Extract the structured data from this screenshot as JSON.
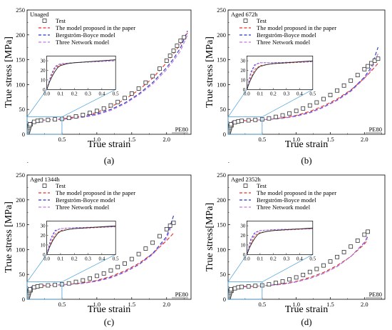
{
  "panels": [
    {
      "caption": "(a)",
      "condition": "Unaged",
      "material": "PE80",
      "xlabel": "True strain",
      "ylabel": "True stress [MPa]",
      "xticks": [
        "0.5",
        "1.0",
        "1.5",
        "2.0"
      ],
      "yticks": [
        "0",
        "50",
        "100",
        "150",
        "200",
        "250"
      ],
      "inset_xticks": [
        "0.0",
        "0.1",
        "0.2",
        "0.3",
        "0.4",
        "0.5"
      ],
      "inset_yticks": [
        "0",
        "10",
        "20",
        "30"
      ],
      "legend": [
        "Test",
        "The model proposed in the paper",
        "Bergström-Boyce model",
        "Three Network model"
      ]
    },
    {
      "caption": "(b)",
      "condition": "Aged 672h",
      "material": "PE80",
      "xlabel": "True strain",
      "ylabel": "True stress [MPa]",
      "xticks": [
        "0.5",
        "1.0",
        "1.5",
        "2.0"
      ],
      "yticks": [
        "0",
        "50",
        "100",
        "150",
        "200",
        "250"
      ],
      "inset_xticks": [
        "0.0",
        "0.1",
        "0.2",
        "0.3",
        "0.4",
        "0.5"
      ],
      "inset_yticks": [
        "0",
        "10",
        "20",
        "30"
      ],
      "legend": [
        "Test",
        "The model proposed in the paper",
        "Bergström-Boyce model",
        "Three Network model"
      ]
    },
    {
      "caption": "(c)",
      "condition": "Aged 1344h",
      "material": "PE80",
      "xlabel": "True strain",
      "ylabel": "True stress [MPa]",
      "xticks": [
        "0.5",
        "1.0",
        "1.5",
        "2.0"
      ],
      "yticks": [
        "0",
        "50",
        "100",
        "150",
        "200",
        "250"
      ],
      "inset_xticks": [
        "0.0",
        "0.1",
        "0.2",
        "0.3",
        "0.4",
        "0.5"
      ],
      "inset_yticks": [
        "0",
        "10",
        "20",
        "30"
      ],
      "legend": [
        "Test",
        "The model proposed in the paper",
        "Bergström-Boyce model",
        "Three Network model"
      ]
    },
    {
      "caption": "(d)",
      "condition": "Aged 2352h",
      "material": "PE80",
      "xlabel": "True strain",
      "ylabel": "True stress[MPa]",
      "xticks": [
        "0.5",
        "1.0",
        "1.5",
        "2.0"
      ],
      "yticks": [
        "0",
        "50",
        "100",
        "150",
        "200",
        "250"
      ],
      "inset_xticks": [
        "0.0",
        "0.1",
        "0.2",
        "0.3",
        "0.4",
        "0.5"
      ],
      "inset_yticks": [
        "0",
        "10",
        "20",
        "30"
      ],
      "legend": [
        "Test",
        "The model proposed in the paper",
        "Bergström-Boyce model",
        "Three Network model"
      ]
    }
  ],
  "chart_data": [
    {
      "type": "line",
      "title": "Unaged",
      "xlabel": "True strain",
      "ylabel": "True stress [MPa]",
      "xlim": [
        0,
        2.35
      ],
      "ylim": [
        0,
        250
      ],
      "inset": {
        "xlim": [
          0,
          0.5
        ],
        "ylim": [
          0,
          35
        ]
      },
      "series": [
        {
          "name": "Test",
          "style": "markers",
          "color": "#333333",
          "x": [
            0.05,
            0.1,
            0.15,
            0.2,
            0.3,
            0.4,
            0.5,
            0.6,
            0.7,
            0.8,
            0.9,
            1.0,
            1.1,
            1.2,
            1.3,
            1.4,
            1.5,
            1.6,
            1.7,
            1.8,
            1.9,
            2.0,
            2.05,
            2.1,
            2.15,
            2.2,
            2.25
          ],
          "y": [
            20,
            25,
            27,
            28,
            29,
            30,
            31,
            33,
            36,
            39,
            43,
            47,
            52,
            58,
            65,
            73,
            82,
            92,
            104,
            117,
            132,
            148,
            158,
            168,
            178,
            188,
            195
          ]
        },
        {
          "name": "The model proposed in the paper",
          "style": "dash",
          "color": "#e8302a",
          "x": [
            0,
            0.03,
            0.06,
            0.1,
            0.2,
            0.5,
            0.8,
            1.0,
            1.2,
            1.4,
            1.6,
            1.8,
            2.0,
            2.1,
            2.2,
            2.3
          ],
          "y": [
            0,
            13,
            22,
            26,
            28,
            31,
            37,
            44,
            55,
            70,
            89,
            113,
            144,
            162,
            182,
            204
          ]
        },
        {
          "name": "Bergström-Boyce model",
          "style": "dash",
          "color": "#2a32c8",
          "x": [
            0,
            0.03,
            0.06,
            0.1,
            0.2,
            0.5,
            0.8,
            1.0,
            1.2,
            1.4,
            1.6,
            1.8,
            2.0,
            2.1,
            2.2,
            2.3
          ],
          "y": [
            0,
            15,
            24,
            27,
            28,
            30,
            35,
            41,
            50,
            63,
            81,
            104,
            134,
            152,
            174,
            208
          ]
        },
        {
          "name": "Three Network model",
          "style": "dash",
          "color": "#c07ad6",
          "x": [
            0,
            0.03,
            0.06,
            0.1,
            0.2,
            0.5,
            0.8,
            1.0,
            1.2,
            1.4,
            1.6,
            1.8,
            2.0,
            2.1,
            2.2,
            2.3
          ],
          "y": [
            0,
            14,
            23,
            27,
            28,
            30,
            34,
            39,
            48,
            61,
            79,
            101,
            130,
            148,
            168,
            200
          ]
        }
      ]
    },
    {
      "type": "line",
      "title": "Aged 672h",
      "xlabel": "True strain",
      "ylabel": "True stress [MPa]",
      "xlim": [
        0,
        2.3
      ],
      "ylim": [
        0,
        250
      ],
      "inset": {
        "xlim": [
          0,
          0.5
        ],
        "ylim": [
          0,
          35
        ]
      },
      "series": [
        {
          "name": "Test",
          "style": "markers",
          "color": "#333333",
          "x": [
            0.05,
            0.1,
            0.15,
            0.2,
            0.3,
            0.4,
            0.5,
            0.6,
            0.7,
            0.8,
            0.9,
            1.0,
            1.1,
            1.2,
            1.3,
            1.4,
            1.5,
            1.6,
            1.7,
            1.8,
            1.9,
            2.0,
            2.05,
            2.1,
            2.15,
            2.2
          ],
          "y": [
            18,
            24,
            26,
            27,
            28,
            29,
            30,
            32,
            35,
            38,
            42,
            47,
            52,
            58,
            64,
            71,
            79,
            88,
            98,
            108,
            119,
            131,
            137,
            143,
            148,
            152
          ]
        },
        {
          "name": "The model proposed in the paper",
          "style": "dash",
          "color": "#e8302a",
          "x": [
            0,
            0.03,
            0.06,
            0.1,
            0.2,
            0.5,
            0.8,
            1.0,
            1.2,
            1.4,
            1.6,
            1.8,
            2.0,
            2.1,
            2.2
          ],
          "y": [
            0,
            12,
            21,
            25,
            27,
            29,
            33,
            38,
            46,
            57,
            71,
            89,
            113,
            127,
            143
          ]
        },
        {
          "name": "Bergström-Boyce model",
          "style": "dash",
          "color": "#2a32c8",
          "x": [
            0,
            0.03,
            0.06,
            0.1,
            0.2,
            0.5,
            0.8,
            1.0,
            1.2,
            1.4,
            1.6,
            1.8,
            2.0,
            2.1,
            2.2
          ],
          "y": [
            0,
            18,
            26,
            28,
            28,
            29,
            32,
            37,
            44,
            55,
            69,
            88,
            115,
            135,
            175
          ]
        },
        {
          "name": "Three Network model",
          "style": "dash",
          "color": "#c07ad6",
          "x": [
            0,
            0.03,
            0.06,
            0.1,
            0.2,
            0.5,
            0.8,
            1.0,
            1.2,
            1.4,
            1.6,
            1.8,
            2.0,
            2.1,
            2.2
          ],
          "y": [
            0,
            16,
            25,
            28,
            28,
            29,
            32,
            36,
            43,
            54,
            68,
            86,
            112,
            130,
            162
          ]
        }
      ]
    },
    {
      "type": "line",
      "title": "Aged 1344h",
      "xlabel": "True strain",
      "ylabel": "True stress [MPa]",
      "xlim": [
        0,
        2.35
      ],
      "ylim": [
        0,
        250
      ],
      "inset": {
        "xlim": [
          0,
          0.5
        ],
        "ylim": [
          0,
          35
        ]
      },
      "series": [
        {
          "name": "Test",
          "style": "markers",
          "color": "#333333",
          "x": [
            0.05,
            0.1,
            0.15,
            0.2,
            0.3,
            0.4,
            0.5,
            0.6,
            0.7,
            0.8,
            0.9,
            1.0,
            1.1,
            1.2,
            1.3,
            1.4,
            1.5,
            1.6,
            1.7,
            1.8,
            1.9,
            2.0,
            2.05,
            2.1
          ],
          "y": [
            18,
            24,
            26,
            27,
            28,
            29,
            30,
            32,
            35,
            38,
            42,
            47,
            52,
            58,
            65,
            72,
            81,
            91,
            102,
            114,
            127,
            141,
            148,
            154
          ]
        },
        {
          "name": "The model proposed in the paper",
          "style": "dash",
          "color": "#e8302a",
          "x": [
            0,
            0.03,
            0.06,
            0.1,
            0.2,
            0.5,
            0.8,
            1.0,
            1.2,
            1.4,
            1.6,
            1.8,
            2.0,
            2.1
          ],
          "y": [
            0,
            12,
            21,
            25,
            27,
            29,
            33,
            38,
            46,
            57,
            72,
            92,
            118,
            133
          ]
        },
        {
          "name": "Bergström-Boyce model",
          "style": "dash",
          "color": "#2a32c8",
          "x": [
            0,
            0.03,
            0.06,
            0.1,
            0.2,
            0.5,
            0.8,
            1.0,
            1.2,
            1.4,
            1.6,
            1.8,
            2.0,
            2.1
          ],
          "y": [
            0,
            17,
            25,
            27,
            28,
            29,
            32,
            37,
            44,
            55,
            70,
            92,
            126,
            168
          ]
        },
        {
          "name": "Three Network model",
          "style": "dash",
          "color": "#c07ad6",
          "x": [
            0,
            0.03,
            0.06,
            0.1,
            0.2,
            0.5,
            0.8,
            1.0,
            1.2,
            1.4,
            1.6,
            1.8,
            2.0,
            2.1
          ],
          "y": [
            0,
            15,
            24,
            27,
            28,
            29,
            32,
            36,
            43,
            54,
            69,
            90,
            122,
            158
          ]
        }
      ]
    },
    {
      "type": "line",
      "title": "Aged 2352h",
      "xlabel": "True strain",
      "ylabel": "True stress[MPa]",
      "xlim": [
        0,
        2.3
      ],
      "ylim": [
        0,
        250
      ],
      "inset": {
        "xlim": [
          0,
          0.5
        ],
        "ylim": [
          0,
          35
        ]
      },
      "series": [
        {
          "name": "Test",
          "style": "markers",
          "color": "#333333",
          "x": [
            0.05,
            0.1,
            0.15,
            0.2,
            0.3,
            0.4,
            0.5,
            0.6,
            0.7,
            0.8,
            0.9,
            1.0,
            1.1,
            1.2,
            1.3,
            1.4,
            1.5,
            1.6,
            1.7,
            1.8,
            1.9,
            2.0,
            2.05
          ],
          "y": [
            17,
            22,
            24,
            25,
            26,
            27,
            28,
            30,
            33,
            36,
            40,
            44,
            49,
            55,
            61,
            68,
            76,
            85,
            95,
            106,
            118,
            130,
            136
          ]
        },
        {
          "name": "The model proposed in the paper",
          "style": "dash",
          "color": "#e8302a",
          "x": [
            0,
            0.03,
            0.06,
            0.1,
            0.2,
            0.5,
            0.8,
            1.0,
            1.2,
            1.4,
            1.6,
            1.8,
            2.0,
            2.05
          ],
          "y": [
            0,
            11,
            20,
            23,
            25,
            27,
            31,
            36,
            44,
            54,
            68,
            86,
            111,
            120
          ]
        },
        {
          "name": "Bergström-Boyce model",
          "style": "dash",
          "color": "#2a32c8",
          "x": [
            0,
            0.03,
            0.06,
            0.1,
            0.2,
            0.5,
            0.8,
            1.0,
            1.2,
            1.4,
            1.6,
            1.8,
            2.0,
            2.05
          ],
          "y": [
            0,
            16,
            23,
            25,
            26,
            27,
            30,
            35,
            42,
            52,
            66,
            86,
            114,
            126
          ]
        },
        {
          "name": "Three Network model",
          "style": "dash",
          "color": "#c07ad6",
          "x": [
            0,
            0.03,
            0.06,
            0.1,
            0.2,
            0.5,
            0.8,
            1.0,
            1.2,
            1.4,
            1.6,
            1.8,
            2.0,
            2.05
          ],
          "y": [
            0,
            14,
            22,
            25,
            26,
            27,
            30,
            35,
            42,
            52,
            66,
            86,
            115,
            128
          ]
        }
      ]
    }
  ]
}
